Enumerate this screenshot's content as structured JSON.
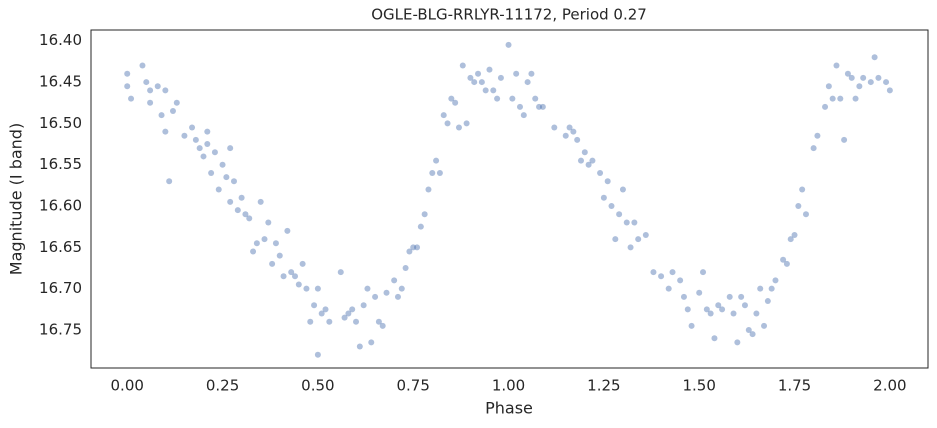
{
  "chart_data": {
    "type": "scatter",
    "title": "OGLE-BLG-RRLYR-11172, Period 0.27",
    "x_label": "Phase",
    "y_label": "Magnitude (I band)",
    "color": "#4c72b0",
    "alpha": 0.45,
    "grid": false,
    "invert_y": true,
    "xlim": [
      -0.095,
      2.1
    ],
    "ylim": [
      16.387,
      16.796
    ],
    "xticks": [
      {
        "value": 0,
        "label": "0.00"
      },
      {
        "value": 0.25,
        "label": "0.25"
      },
      {
        "value": 0.5,
        "label": "0.50"
      },
      {
        "value": 0.75,
        "label": "0.75"
      },
      {
        "value": 1,
        "label": "1.00"
      },
      {
        "value": 1.25,
        "label": "1.25"
      },
      {
        "value": 1.5,
        "label": "1.50"
      },
      {
        "value": 1.75,
        "label": "1.75"
      },
      {
        "value": 2,
        "label": "2.00"
      }
    ],
    "yticks": [
      {
        "value": 16.4,
        "label": "16.40"
      },
      {
        "value": 16.45,
        "label": "16.45"
      },
      {
        "value": 16.5,
        "label": "16.50"
      },
      {
        "value": 16.55,
        "label": "16.55"
      },
      {
        "value": 16.6,
        "label": "16.60"
      },
      {
        "value": 16.65,
        "label": "16.65"
      },
      {
        "value": 16.7,
        "label": "16.70"
      },
      {
        "value": 16.75,
        "label": "16.75"
      }
    ],
    "x": [
      0.0,
      0.0,
      0.01,
      0.04,
      0.05,
      0.06,
      0.06,
      0.08,
      0.09,
      0.1,
      0.1,
      0.11,
      0.12,
      0.13,
      0.15,
      0.17,
      0.18,
      0.19,
      0.2,
      0.21,
      0.21,
      0.22,
      0.23,
      0.24,
      0.25,
      0.26,
      0.27,
      0.27,
      0.28,
      0.29,
      0.3,
      0.31,
      0.32,
      0.33,
      0.34,
      0.35,
      0.36,
      0.37,
      0.38,
      0.39,
      0.4,
      0.41,
      0.42,
      0.43,
      0.44,
      0.45,
      0.46,
      0.47,
      0.48,
      0.49,
      0.5,
      0.51,
      0.52,
      0.53,
      0.5,
      0.56,
      0.57,
      0.58,
      0.59,
      0.6,
      0.61,
      0.62,
      0.63,
      0.64,
      0.65,
      0.66,
      0.67,
      0.68,
      0.7,
      0.71,
      0.72,
      0.73,
      0.74,
      0.75,
      0.76,
      0.77,
      0.78,
      0.79,
      0.8,
      0.81,
      0.82,
      0.83,
      0.84,
      0.85,
      0.86,
      0.87,
      0.88,
      0.89,
      0.9,
      0.91,
      0.92,
      0.93,
      0.94,
      0.95,
      0.96,
      0.97,
      0.98,
      1.0,
      1.01,
      1.02,
      1.03,
      1.04,
      1.05,
      1.06,
      1.07,
      1.08,
      1.09,
      1.12,
      1.15,
      1.16,
      1.17,
      1.18,
      1.19,
      1.2,
      1.21,
      1.22,
      1.24,
      1.25,
      1.26,
      1.27,
      1.28,
      1.29,
      1.3,
      1.31,
      1.32,
      1.33,
      1.34,
      1.36,
      1.38,
      1.4,
      1.42,
      1.43,
      1.45,
      1.46,
      1.47,
      1.48,
      1.5,
      1.51,
      1.52,
      1.53,
      1.54,
      1.55,
      1.56,
      1.58,
      1.59,
      1.6,
      1.61,
      1.62,
      1.63,
      1.64,
      1.65,
      1.66,
      1.67,
      1.68,
      1.69,
      1.7,
      1.72,
      1.73,
      1.74,
      1.75,
      1.76,
      1.77,
      1.78,
      1.8,
      1.81,
      1.83,
      1.84,
      1.85,
      1.86,
      1.87,
      1.88,
      1.89,
      1.9,
      1.91,
      1.92,
      1.93,
      1.95,
      1.96,
      1.97,
      1.99,
      2.0
    ],
    "y": [
      16.44,
      16.455,
      16.47,
      16.43,
      16.45,
      16.46,
      16.475,
      16.455,
      16.49,
      16.51,
      16.46,
      16.57,
      16.485,
      16.475,
      16.515,
      16.505,
      16.52,
      16.53,
      16.54,
      16.51,
      16.525,
      16.56,
      16.535,
      16.58,
      16.55,
      16.565,
      16.53,
      16.595,
      16.57,
      16.605,
      16.59,
      16.61,
      16.615,
      16.655,
      16.645,
      16.595,
      16.64,
      16.62,
      16.67,
      16.645,
      16.66,
      16.685,
      16.63,
      16.68,
      16.685,
      16.695,
      16.67,
      16.7,
      16.74,
      16.72,
      16.7,
      16.73,
      16.725,
      16.74,
      16.78,
      16.68,
      16.735,
      16.73,
      16.725,
      16.74,
      16.77,
      16.72,
      16.7,
      16.765,
      16.71,
      16.74,
      16.745,
      16.705,
      16.69,
      16.71,
      16.7,
      16.675,
      16.655,
      16.65,
      16.65,
      16.625,
      16.61,
      16.58,
      16.56,
      16.545,
      16.56,
      16.49,
      16.5,
      16.47,
      16.475,
      16.505,
      16.43,
      16.5,
      16.445,
      16.45,
      16.44,
      16.45,
      16.46,
      16.435,
      16.46,
      16.47,
      16.445,
      16.405,
      16.47,
      16.44,
      16.48,
      16.49,
      16.45,
      16.44,
      16.47,
      16.48,
      16.48,
      16.505,
      16.515,
      16.505,
      16.51,
      16.52,
      16.545,
      16.535,
      16.55,
      16.545,
      16.56,
      16.59,
      16.57,
      16.6,
      16.64,
      16.61,
      16.58,
      16.62,
      16.65,
      16.62,
      16.64,
      16.635,
      16.68,
      16.685,
      16.7,
      16.68,
      16.69,
      16.71,
      16.725,
      16.745,
      16.705,
      16.68,
      16.725,
      16.73,
      16.76,
      16.72,
      16.725,
      16.71,
      16.73,
      16.765,
      16.71,
      16.72,
      16.75,
      16.755,
      16.73,
      16.7,
      16.745,
      16.715,
      16.7,
      16.69,
      16.665,
      16.67,
      16.64,
      16.635,
      16.6,
      16.58,
      16.61,
      16.53,
      16.515,
      16.48,
      16.455,
      16.47,
      16.43,
      16.47,
      16.52,
      16.44,
      16.445,
      16.47,
      16.455,
      16.445,
      16.45,
      16.42,
      16.445,
      16.45,
      16.46
    ]
  }
}
